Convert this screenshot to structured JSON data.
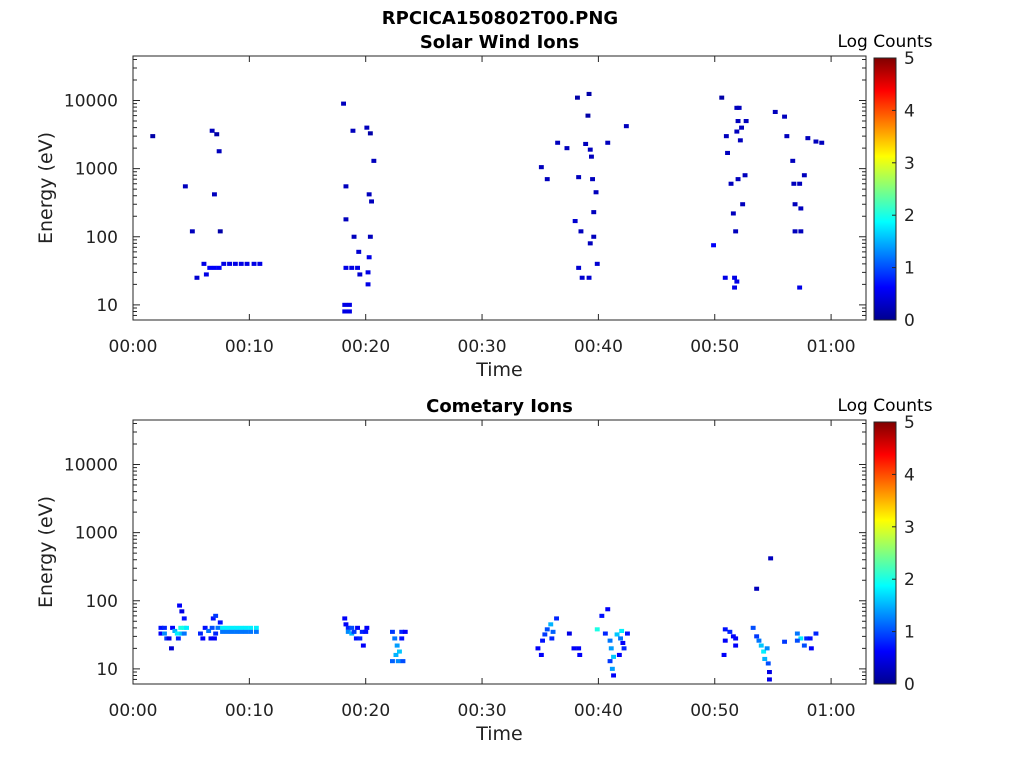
{
  "figure_title": "RPCICA150802T00.PNG",
  "chart_data": [
    {
      "type": "heatmap",
      "title": "Solar Wind Ions",
      "xlabel": "Time",
      "ylabel": "Energy (eV)",
      "x_unit": "minutes after 00:00",
      "xlim": [
        0,
        63
      ],
      "ylim": [
        6,
        45000
      ],
      "yscale": "log",
      "x_ticks": [
        0,
        10,
        20,
        30,
        40,
        50,
        60
      ],
      "x_tick_labels": [
        "00:00",
        "00:10",
        "00:20",
        "00:30",
        "00:40",
        "00:50",
        "01:00"
      ],
      "y_ticks": [
        10,
        100,
        1000,
        10000
      ],
      "y_tick_labels": [
        "10",
        "100",
        "1000",
        "10000"
      ],
      "colorbar": {
        "label": "Log Counts",
        "range": [
          0,
          5
        ],
        "ticks": [
          "0",
          "1",
          "2",
          "3",
          "4",
          "5"
        ],
        "colormap": "jet"
      },
      "points": [
        [
          1.7,
          3000,
          0.2
        ],
        [
          4.5,
          550,
          0.3
        ],
        [
          5.1,
          120,
          0.3
        ],
        [
          5.5,
          25,
          0.4
        ],
        [
          6.1,
          40,
          0.5
        ],
        [
          6.3,
          28,
          0.5
        ],
        [
          6.8,
          3600,
          0.3
        ],
        [
          7.0,
          420,
          0.3
        ],
        [
          7.2,
          3200,
          0.2
        ],
        [
          7.4,
          1800,
          0.3
        ],
        [
          7.5,
          120,
          0.2
        ],
        [
          6.6,
          35,
          0.6
        ],
        [
          7.0,
          35,
          0.6
        ],
        [
          7.4,
          35,
          0.6
        ],
        [
          7.8,
          40,
          0.5
        ],
        [
          8.3,
          40,
          0.5
        ],
        [
          8.8,
          40,
          0.5
        ],
        [
          9.3,
          40,
          0.5
        ],
        [
          9.8,
          40,
          0.5
        ],
        [
          10.4,
          40,
          0.5
        ],
        [
          10.9,
          40,
          0.5
        ],
        [
          18.1,
          9000,
          0.3
        ],
        [
          18.3,
          550,
          0.3
        ],
        [
          18.3,
          180,
          0.3
        ],
        [
          18.2,
          10,
          0.5
        ],
        [
          18.2,
          8,
          0.5
        ],
        [
          18.6,
          10,
          0.5
        ],
        [
          18.6,
          8,
          0.5
        ],
        [
          18.9,
          3600,
          0.3
        ],
        [
          18.3,
          35,
          0.5
        ],
        [
          18.8,
          35,
          0.5
        ],
        [
          19.3,
          35,
          0.5
        ],
        [
          19.0,
          100,
          0.3
        ],
        [
          19.5,
          28,
          0.4
        ],
        [
          19.4,
          60,
          0.4
        ],
        [
          20.1,
          4000,
          0.3
        ],
        [
          20.4,
          3300,
          0.2
        ],
        [
          20.3,
          420,
          0.3
        ],
        [
          20.5,
          330,
          0.3
        ],
        [
          20.7,
          1300,
          0.3
        ],
        [
          20.4,
          100,
          0.3
        ],
        [
          20.3,
          50,
          0.5
        ],
        [
          20.2,
          30,
          0.5
        ],
        [
          20.2,
          20,
          0.5
        ],
        [
          35.1,
          1050,
          0.3
        ],
        [
          35.6,
          700,
          0.3
        ],
        [
          36.5,
          2400,
          0.3
        ],
        [
          37.3,
          2000,
          0.3
        ],
        [
          38.0,
          170,
          0.4
        ],
        [
          38.3,
          750,
          0.3
        ],
        [
          38.2,
          11000,
          0.2
        ],
        [
          38.5,
          120,
          0.3
        ],
        [
          38.3,
          35,
          0.4
        ],
        [
          38.6,
          25,
          0.4
        ],
        [
          38.9,
          2300,
          0.3
        ],
        [
          39.1,
          6000,
          0.2
        ],
        [
          39.2,
          12500,
          0.2
        ],
        [
          39.3,
          1900,
          0.3
        ],
        [
          39.4,
          1500,
          0.3
        ],
        [
          39.5,
          700,
          0.3
        ],
        [
          39.6,
          230,
          0.3
        ],
        [
          39.6,
          100,
          0.3
        ],
        [
          39.3,
          80,
          0.3
        ],
        [
          39.2,
          25,
          0.4
        ],
        [
          39.8,
          450,
          0.3
        ],
        [
          39.9,
          40,
          0.4
        ],
        [
          40.8,
          2400,
          0.3
        ],
        [
          42.4,
          4200,
          0.3
        ],
        [
          49.9,
          75,
          0.6
        ],
        [
          50.6,
          11000,
          0.2
        ],
        [
          51.0,
          3000,
          0.3
        ],
        [
          51.1,
          1700,
          0.3
        ],
        [
          51.4,
          600,
          0.3
        ],
        [
          51.6,
          220,
          0.3
        ],
        [
          51.8,
          120,
          0.3
        ],
        [
          51.9,
          7800,
          0.3
        ],
        [
          52.1,
          7800,
          0.3
        ],
        [
          52.0,
          5000,
          0.3
        ],
        [
          52.3,
          4000,
          0.3
        ],
        [
          51.9,
          3500,
          0.3
        ],
        [
          52.0,
          700,
          0.3
        ],
        [
          52.2,
          2600,
          0.3
        ],
        [
          52.4,
          300,
          0.3
        ],
        [
          52.6,
          800,
          0.3
        ],
        [
          52.7,
          5000,
          0.3
        ],
        [
          50.9,
          25,
          0.5
        ],
        [
          51.7,
          25,
          0.5
        ],
        [
          51.7,
          18,
          0.5
        ],
        [
          51.9,
          22,
          0.5
        ],
        [
          55.2,
          6800,
          0.3
        ],
        [
          56.0,
          5800,
          0.3
        ],
        [
          56.2,
          3000,
          0.3
        ],
        [
          56.7,
          1300,
          0.3
        ],
        [
          56.8,
          600,
          0.3
        ],
        [
          56.9,
          300,
          0.3
        ],
        [
          56.9,
          120,
          0.3
        ],
        [
          57.3,
          600,
          0.3
        ],
        [
          57.4,
          260,
          0.3
        ],
        [
          57.4,
          120,
          0.3
        ],
        [
          57.7,
          800,
          0.3
        ],
        [
          57.3,
          18,
          0.5
        ],
        [
          58.0,
          2800,
          0.3
        ],
        [
          58.7,
          2500,
          0.3
        ],
        [
          59.2,
          2400,
          0.3
        ]
      ]
    },
    {
      "type": "heatmap",
      "title": "Cometary Ions",
      "xlabel": "Time",
      "ylabel": "Energy (eV)",
      "x_unit": "minutes after 00:00",
      "xlim": [
        0,
        63
      ],
      "ylim": [
        6,
        45000
      ],
      "yscale": "log",
      "x_ticks": [
        0,
        10,
        20,
        30,
        40,
        50,
        60
      ],
      "x_tick_labels": [
        "00:00",
        "00:10",
        "00:20",
        "00:30",
        "00:40",
        "00:50",
        "01:00"
      ],
      "y_ticks": [
        10,
        100,
        1000,
        10000
      ],
      "y_tick_labels": [
        "10",
        "100",
        "1000",
        "10000"
      ],
      "colorbar": {
        "label": "Log Counts",
        "range": [
          0,
          5
        ],
        "ticks": [
          "0",
          "1",
          "2",
          "3",
          "4",
          "5"
        ],
        "colormap": "jet"
      },
      "points": [
        [
          2.4,
          40,
          0.7
        ],
        [
          2.7,
          40,
          0.8
        ],
        [
          2.4,
          33,
          0.6
        ],
        [
          2.7,
          33,
          1.3
        ],
        [
          2.9,
          28,
          0.9
        ],
        [
          3.1,
          28,
          0.5
        ],
        [
          3.3,
          20,
          0.4
        ],
        [
          3.4,
          40,
          0.6
        ],
        [
          3.6,
          36,
          1.5
        ],
        [
          3.8,
          33,
          1.8
        ],
        [
          3.9,
          28,
          0.8
        ],
        [
          4.0,
          85,
          0.6
        ],
        [
          4.2,
          70,
          0.5
        ],
        [
          4.1,
          40,
          2.0
        ],
        [
          4.4,
          40,
          2.0
        ],
        [
          4.2,
          33,
          1.6
        ],
        [
          4.4,
          33,
          1.2
        ],
        [
          4.6,
          40,
          1.8
        ],
        [
          4.4,
          55,
          0.7
        ],
        [
          5.8,
          33,
          0.8
        ],
        [
          6.0,
          28,
          0.6
        ],
        [
          6.2,
          40,
          0.7
        ],
        [
          6.5,
          36,
          1.2
        ],
        [
          6.8,
          40,
          1.0
        ],
        [
          6.9,
          55,
          0.7
        ],
        [
          7.1,
          60,
          0.9
        ],
        [
          7.3,
          40,
          1.2
        ],
        [
          7.1,
          33,
          0.8
        ],
        [
          7.0,
          28,
          0.6
        ],
        [
          7.5,
          48,
          0.7
        ],
        [
          6.7,
          28,
          0.6
        ],
        [
          7.7,
          40,
          1.8
        ],
        [
          8.1,
          40,
          1.8
        ],
        [
          8.5,
          40,
          1.8
        ],
        [
          8.9,
          40,
          1.8
        ],
        [
          9.3,
          40,
          1.8
        ],
        [
          9.7,
          40,
          1.8
        ],
        [
          10.1,
          40,
          1.8
        ],
        [
          10.6,
          40,
          1.8
        ],
        [
          7.7,
          35,
          1.2
        ],
        [
          8.1,
          35,
          1.2
        ],
        [
          8.5,
          35,
          1.2
        ],
        [
          8.9,
          35,
          1.2
        ],
        [
          9.3,
          35,
          1.2
        ],
        [
          9.7,
          35,
          1.2
        ],
        [
          10.1,
          35,
          1.2
        ],
        [
          10.6,
          35,
          1.2
        ],
        [
          18.2,
          55,
          0.6
        ],
        [
          18.3,
          45,
          0.6
        ],
        [
          18.5,
          40,
          0.8
        ],
        [
          18.5,
          35,
          1.3
        ],
        [
          18.8,
          40,
          1.0
        ],
        [
          18.8,
          33,
          1.5
        ],
        [
          19.0,
          35,
          0.9
        ],
        [
          19.2,
          28,
          0.7
        ],
        [
          19.3,
          40,
          0.6
        ],
        [
          19.5,
          28,
          0.8
        ],
        [
          19.7,
          35,
          0.8
        ],
        [
          19.8,
          22,
          0.6
        ],
        [
          20.0,
          35,
          0.7
        ],
        [
          20.1,
          40,
          0.6
        ],
        [
          22.3,
          35,
          0.9
        ],
        [
          22.5,
          28,
          1.2
        ],
        [
          22.7,
          22,
          1.4
        ],
        [
          22.9,
          18,
          1.6
        ],
        [
          22.6,
          16,
          1.5
        ],
        [
          22.8,
          13,
          1.3
        ],
        [
          23.1,
          28,
          0.7
        ],
        [
          23.1,
          35,
          0.8
        ],
        [
          23.4,
          35,
          0.6
        ],
        [
          22.3,
          13,
          1.1
        ],
        [
          23.2,
          13,
          1.0
        ],
        [
          34.8,
          20,
          0.6
        ],
        [
          35.1,
          16,
          0.6
        ],
        [
          35.2,
          26,
          0.7
        ],
        [
          35.4,
          32,
          0.9
        ],
        [
          35.6,
          38,
          1.0
        ],
        [
          35.9,
          45,
          1.5
        ],
        [
          36.1,
          35,
          1.1
        ],
        [
          36.0,
          28,
          0.8
        ],
        [
          36.4,
          55,
          0.8
        ],
        [
          37.5,
          33,
          0.5
        ],
        [
          37.9,
          20,
          0.6
        ],
        [
          38.3,
          20,
          0.6
        ],
        [
          38.4,
          16,
          0.6
        ],
        [
          39.9,
          38,
          2.0
        ],
        [
          40.3,
          60,
          0.7
        ],
        [
          40.8,
          75,
          0.6
        ],
        [
          40.6,
          33,
          0.8
        ],
        [
          41.0,
          26,
          1.2
        ],
        [
          41.1,
          20,
          1.4
        ],
        [
          41.3,
          15,
          1.6
        ],
        [
          41.2,
          10,
          1.4
        ],
        [
          41.3,
          8,
          0.6
        ],
        [
          41.0,
          13,
          0.9
        ],
        [
          41.6,
          32,
          1.6
        ],
        [
          41.9,
          28,
          1.2
        ],
        [
          42.0,
          36,
          1.8
        ],
        [
          42.2,
          20,
          0.8
        ],
        [
          42.5,
          33,
          0.7
        ],
        [
          41.8,
          16,
          0.6
        ],
        [
          42.1,
          24,
          0.6
        ],
        [
          50.9,
          38,
          0.7
        ],
        [
          50.9,
          26,
          0.6
        ],
        [
          50.8,
          16,
          0.6
        ],
        [
          51.3,
          35,
          0.8
        ],
        [
          51.6,
          30,
          0.6
        ],
        [
          51.8,
          28,
          0.6
        ],
        [
          51.8,
          22,
          0.6
        ],
        [
          53.3,
          40,
          1.0
        ],
        [
          53.6,
          30,
          0.9
        ],
        [
          53.8,
          26,
          1.2
        ],
        [
          54.0,
          22,
          1.6
        ],
        [
          54.2,
          18,
          1.8
        ],
        [
          54.3,
          14,
          1.5
        ],
        [
          54.5,
          20,
          1.3
        ],
        [
          54.6,
          12,
          1.0
        ],
        [
          54.7,
          9,
          0.5
        ],
        [
          54.7,
          7,
          0.5
        ],
        [
          53.6,
          150,
          0.3
        ],
        [
          54.8,
          420,
          0.3
        ],
        [
          56.0,
          25,
          0.9
        ],
        [
          57.1,
          33,
          1.2
        ],
        [
          57.4,
          28,
          1.8
        ],
        [
          57.7,
          22,
          1.0
        ],
        [
          57.9,
          28,
          0.8
        ],
        [
          58.2,
          28,
          0.7
        ],
        [
          58.3,
          20,
          0.6
        ],
        [
          57.1,
          26,
          1.0
        ],
        [
          58.7,
          33,
          0.8
        ]
      ]
    }
  ]
}
